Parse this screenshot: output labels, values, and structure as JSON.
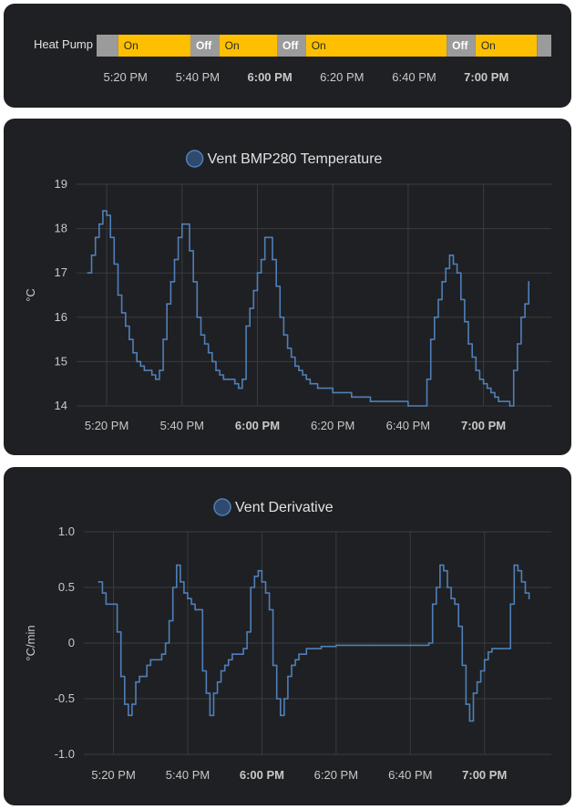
{
  "timeline": {
    "entity_label": "Heat Pump",
    "on_color": "#fdbf00",
    "off_color": "#9b9b9b",
    "segments": [
      {
        "state": "",
        "start": "17:12",
        "end": "17:18"
      },
      {
        "state": "On",
        "start": "17:18",
        "end": "17:38"
      },
      {
        "state": "Off",
        "start": "17:38",
        "end": "17:46"
      },
      {
        "state": "On",
        "start": "17:46",
        "end": "17:62"
      },
      {
        "state": "Off",
        "start": "18:02",
        "end": "18:10"
      },
      {
        "state": "On",
        "start": "18:10",
        "end": "18:49"
      },
      {
        "state": "Off",
        "start": "18:49",
        "end": "18:57"
      },
      {
        "state": "On",
        "start": "18:57",
        "end": "19:14"
      },
      {
        "state": "",
        "start": "19:14",
        "end": "19:18"
      }
    ],
    "tick_labels": [
      "5:20 PM",
      "5:40 PM",
      "6:00 PM",
      "6:20 PM",
      "6:40 PM",
      "7:00 PM"
    ]
  },
  "chart_data": [
    {
      "type": "line",
      "title": "Vent BMP280 Temperature",
      "ylabel": "°C",
      "ylim": [
        14,
        19
      ],
      "y_ticks": [
        "19",
        "18",
        "17",
        "16",
        "15",
        "14"
      ],
      "x_ticks": [
        "5:20 PM",
        "5:40 PM",
        "6:00 PM",
        "6:20 PM",
        "6:40 PM",
        "7:00 PM"
      ],
      "bold_ticks": [
        "6:00 PM",
        "7:00 PM"
      ],
      "grid": true,
      "line_style": "step",
      "series": [
        {
          "name": "Vent BMP280 Temperature",
          "color": "#4f7fb8",
          "points": [
            [
              "17:15",
              17.0
            ],
            [
              "17:16",
              17.4
            ],
            [
              "17:17",
              17.8
            ],
            [
              "17:18",
              18.1
            ],
            [
              "17:19",
              18.4
            ],
            [
              "17:20",
              18.3
            ],
            [
              "17:21",
              17.8
            ],
            [
              "17:22",
              17.2
            ],
            [
              "17:23",
              16.5
            ],
            [
              "17:24",
              16.1
            ],
            [
              "17:25",
              15.8
            ],
            [
              "17:26",
              15.5
            ],
            [
              "17:27",
              15.2
            ],
            [
              "17:28",
              15.0
            ],
            [
              "17:29",
              14.9
            ],
            [
              "17:30",
              14.8
            ],
            [
              "17:32",
              14.7
            ],
            [
              "17:33",
              14.6
            ],
            [
              "17:34",
              14.8
            ],
            [
              "17:35",
              15.5
            ],
            [
              "17:36",
              16.3
            ],
            [
              "17:37",
              16.8
            ],
            [
              "17:38",
              17.3
            ],
            [
              "17:39",
              17.8
            ],
            [
              "17:40",
              18.1
            ],
            [
              "17:42",
              17.5
            ],
            [
              "17:43",
              16.8
            ],
            [
              "17:44",
              16.0
            ],
            [
              "17:45",
              15.6
            ],
            [
              "17:46",
              15.4
            ],
            [
              "17:47",
              15.2
            ],
            [
              "17:48",
              15.0
            ],
            [
              "17:49",
              14.8
            ],
            [
              "17:50",
              14.7
            ],
            [
              "17:51",
              14.6
            ],
            [
              "17:54",
              14.5
            ],
            [
              "17:55",
              14.4
            ],
            [
              "17:56",
              14.6
            ],
            [
              "17:57",
              15.8
            ],
            [
              "17:58",
              16.2
            ],
            [
              "17:59",
              16.6
            ],
            [
              "18:00",
              17.0
            ],
            [
              "18:01",
              17.3
            ],
            [
              "18:02",
              17.8
            ],
            [
              "18:04",
              17.3
            ],
            [
              "18:05",
              16.7
            ],
            [
              "18:06",
              16.0
            ],
            [
              "18:07",
              15.6
            ],
            [
              "18:08",
              15.3
            ],
            [
              "18:09",
              15.1
            ],
            [
              "18:10",
              14.9
            ],
            [
              "18:11",
              14.8
            ],
            [
              "18:12",
              14.7
            ],
            [
              "18:13",
              14.6
            ],
            [
              "18:14",
              14.5
            ],
            [
              "18:16",
              14.4
            ],
            [
              "18:20",
              14.3
            ],
            [
              "18:25",
              14.2
            ],
            [
              "18:30",
              14.1
            ],
            [
              "18:40",
              14.0
            ],
            [
              "18:45",
              14.6
            ],
            [
              "18:46",
              15.5
            ],
            [
              "18:47",
              16.0
            ],
            [
              "18:48",
              16.4
            ],
            [
              "18:49",
              16.8
            ],
            [
              "18:50",
              17.1
            ],
            [
              "18:51",
              17.4
            ],
            [
              "18:52",
              17.2
            ],
            [
              "18:53",
              17.0
            ],
            [
              "18:54",
              16.4
            ],
            [
              "18:55",
              15.9
            ],
            [
              "18:56",
              15.4
            ],
            [
              "18:57",
              15.1
            ],
            [
              "18:58",
              14.8
            ],
            [
              "18:59",
              14.6
            ],
            [
              "19:00",
              14.5
            ],
            [
              "19:01",
              14.4
            ],
            [
              "19:02",
              14.3
            ],
            [
              "19:03",
              14.2
            ],
            [
              "19:04",
              14.1
            ],
            [
              "19:07",
              14.0
            ],
            [
              "19:08",
              14.8
            ],
            [
              "19:09",
              15.4
            ],
            [
              "19:10",
              16.0
            ],
            [
              "19:11",
              16.3
            ],
            [
              "19:12",
              16.8
            ]
          ]
        }
      ]
    },
    {
      "type": "line",
      "title": "Vent Derivative",
      "ylabel": "°C/min",
      "ylim": [
        -1.0,
        1.0
      ],
      "y_ticks": [
        "1.0",
        "0.5",
        "0",
        "-0.5",
        "-1.0"
      ],
      "x_ticks": [
        "5:20 PM",
        "5:40 PM",
        "6:00 PM",
        "6:20 PM",
        "6:40 PM",
        "7:00 PM"
      ],
      "bold_ticks": [
        "6:00 PM",
        "7:00 PM"
      ],
      "grid": true,
      "line_style": "step",
      "series": [
        {
          "name": "Vent Derivative",
          "color": "#4f7fb8",
          "points": [
            [
              "17:16",
              0.55
            ],
            [
              "17:17",
              0.45
            ],
            [
              "17:18",
              0.35
            ],
            [
              "17:21",
              0.1
            ],
            [
              "17:22",
              -0.3
            ],
            [
              "17:23",
              -0.55
            ],
            [
              "17:24",
              -0.65
            ],
            [
              "17:25",
              -0.55
            ],
            [
              "17:26",
              -0.35
            ],
            [
              "17:27",
              -0.3
            ],
            [
              "17:29",
              -0.2
            ],
            [
              "17:30",
              -0.15
            ],
            [
              "17:33",
              -0.1
            ],
            [
              "17:34",
              0.0
            ],
            [
              "17:35",
              0.2
            ],
            [
              "17:36",
              0.5
            ],
            [
              "17:37",
              0.7
            ],
            [
              "17:38",
              0.55
            ],
            [
              "17:39",
              0.45
            ],
            [
              "17:40",
              0.4
            ],
            [
              "17:41",
              0.35
            ],
            [
              "17:42",
              0.3
            ],
            [
              "17:44",
              -0.25
            ],
            [
              "17:45",
              -0.45
            ],
            [
              "17:46",
              -0.65
            ],
            [
              "17:47",
              -0.45
            ],
            [
              "17:48",
              -0.35
            ],
            [
              "17:49",
              -0.25
            ],
            [
              "17:50",
              -0.2
            ],
            [
              "17:51",
              -0.15
            ],
            [
              "17:52",
              -0.1
            ],
            [
              "17:55",
              -0.05
            ],
            [
              "17:56",
              0.1
            ],
            [
              "17:57",
              0.5
            ],
            [
              "17:58",
              0.6
            ],
            [
              "17:59",
              0.65
            ],
            [
              "18:00",
              0.55
            ],
            [
              "18:01",
              0.45
            ],
            [
              "18:02",
              0.3
            ],
            [
              "18:03",
              -0.2
            ],
            [
              "18:04",
              -0.5
            ],
            [
              "18:05",
              -0.65
            ],
            [
              "18:06",
              -0.5
            ],
            [
              "18:07",
              -0.3
            ],
            [
              "18:08",
              -0.2
            ],
            [
              "18:09",
              -0.15
            ],
            [
              "18:10",
              -0.1
            ],
            [
              "18:12",
              -0.05
            ],
            [
              "18:16",
              -0.03
            ],
            [
              "18:20",
              -0.02
            ],
            [
              "18:30",
              -0.02
            ],
            [
              "18:40",
              -0.02
            ],
            [
              "18:45",
              0.0
            ],
            [
              "18:46",
              0.35
            ],
            [
              "18:47",
              0.5
            ],
            [
              "18:48",
              0.7
            ],
            [
              "18:49",
              0.65
            ],
            [
              "18:50",
              0.5
            ],
            [
              "18:51",
              0.4
            ],
            [
              "18:52",
              0.35
            ],
            [
              "18:53",
              0.15
            ],
            [
              "18:54",
              -0.2
            ],
            [
              "18:55",
              -0.55
            ],
            [
              "18:56",
              -0.7
            ],
            [
              "18:57",
              -0.45
            ],
            [
              "18:58",
              -0.35
            ],
            [
              "18:59",
              -0.25
            ],
            [
              "19:00",
              -0.15
            ],
            [
              "19:01",
              -0.08
            ],
            [
              "19:02",
              -0.05
            ],
            [
              "19:07",
              0.35
            ],
            [
              "19:08",
              0.7
            ],
            [
              "19:09",
              0.65
            ],
            [
              "19:10",
              0.55
            ],
            [
              "19:11",
              0.45
            ],
            [
              "19:12",
              0.4
            ]
          ]
        }
      ]
    }
  ]
}
